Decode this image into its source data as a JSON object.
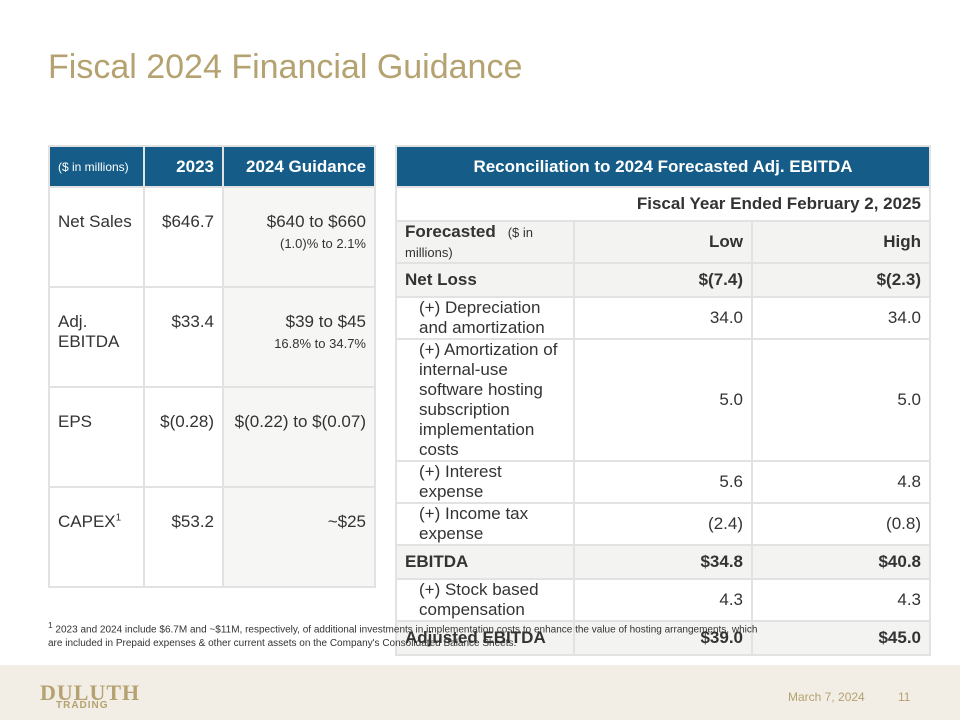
{
  "title": "Fiscal 2024 Financial Guidance",
  "left_table": {
    "header": [
      "($ in millions)",
      "2023",
      "2024 Guidance"
    ],
    "rows": [
      {
        "label": "Net Sales",
        "value_2023": "$646.7",
        "guidance": "$640 to $660",
        "guidance_sub": "(1.0)% to 2.1%"
      },
      {
        "label": "Adj. EBITDA",
        "value_2023": "$33.4",
        "guidance": "$39 to $45",
        "guidance_sub": "16.8% to 34.7%"
      },
      {
        "label": "EPS",
        "value_2023": "$(0.28)",
        "guidance": "$(0.22) to $(0.07)"
      },
      {
        "label": "CAPEX",
        "label_sup": "1",
        "value_2023": "$53.2",
        "guidance": "~$25"
      }
    ]
  },
  "right_table": {
    "title": "Reconciliation to 2024 Forecasted Adj. EBITDA",
    "period": "Fiscal Year Ended February 2, 2025",
    "header": {
      "label": "Forecasted",
      "unit": "($ in millions)",
      "low": "Low",
      "high": "High"
    },
    "rows": [
      {
        "label": "Net Loss",
        "low": "$(7.4)",
        "high": "$(2.3)",
        "bold": true
      },
      {
        "label": "(+) Depreciation and amortization",
        "low": "34.0",
        "high": "34.0"
      },
      {
        "label": "(+) Amortization of internal-use software hosting subscription implementation costs",
        "low": "5.0",
        "high": "5.0"
      },
      {
        "label": "(+) Interest expense",
        "low": "5.6",
        "high": "4.8"
      },
      {
        "label": "(+) Income tax expense",
        "low": "(2.4)",
        "high": "(0.8)"
      },
      {
        "label": "EBITDA",
        "low": "$34.8",
        "high": "$40.8",
        "bold": true
      },
      {
        "label": "(+) Stock based compensation",
        "low": "4.3",
        "high": "4.3"
      },
      {
        "label": "Adjusted EBITDA",
        "low": "$39.0",
        "high": "$45.0",
        "bold": true
      }
    ]
  },
  "footnote": {
    "marker": "1",
    "text": "2023 and 2024 include $6.7M and ~$11M, respectively, of additional investments in implementation costs to enhance the value of hosting arrangements, which are included in Prepaid expenses & other current assets on the Company's Consolidated Balance Sheets."
  },
  "footer": {
    "logo": "DULUTH",
    "logo_sub": "TRADING",
    "date": "March 7, 2024",
    "page": "11"
  }
}
